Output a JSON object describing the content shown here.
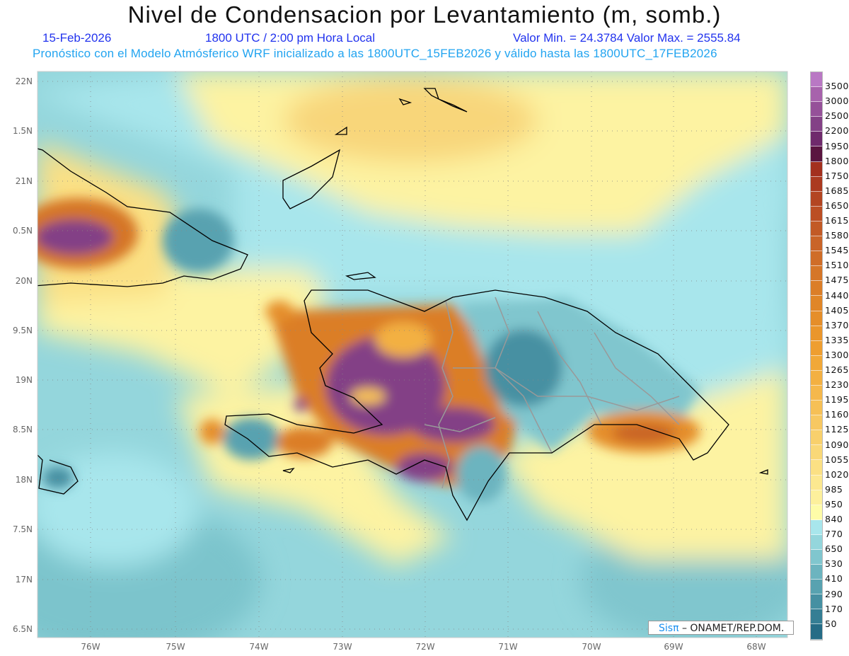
{
  "header": {
    "title": "Nivel de Condensacion por Levantamiento (m, somb.)",
    "date": "15-Feb-2026",
    "time": "1800 UTC / 2:00 pm Hora Local",
    "minmax": "Valor Min. = 24.3784  Valor Max. = 2555.84",
    "forecast": "Pronóstico con el Modelo Atmósferico WRF inicializado a las 1800UTC_15FEB2026 y válido hasta las  1800UTC_17FEB2026"
  },
  "axes": {
    "lat_labels": [
      "22N",
      "1.5N",
      "21N",
      "0.5N",
      "20N",
      "9.5N",
      "19N",
      "8.5N",
      "18N",
      "7.5N",
      "17N",
      "6.5N"
    ],
    "lon_labels": [
      "76W",
      "75W",
      "74W",
      "73W",
      "72W",
      "71W",
      "70W",
      "69W",
      "68W"
    ]
  },
  "colorbar": {
    "labels": [
      "3500",
      "3000",
      "2500",
      "2200",
      "1950",
      "1800",
      "1750",
      "1685",
      "1650",
      "1615",
      "1580",
      "1545",
      "1510",
      "1475",
      "1440",
      "1405",
      "1370",
      "1335",
      "1300",
      "1265",
      "1230",
      "1195",
      "1160",
      "1125",
      "1090",
      "1055",
      "1020",
      "985",
      "950",
      "840",
      "770",
      "650",
      "530",
      "410",
      "290",
      "170",
      "50"
    ],
    "colors": [
      "#b978c4",
      "#a762ac",
      "#955199",
      "#834186",
      "#6f2a6c",
      "#5a1540",
      "#a3301e",
      "#ab3a20",
      "#b34522",
      "#bb4e24",
      "#c25a26",
      "#c96428",
      "#cf6d28",
      "#d57628",
      "#db7e28",
      "#e08628",
      "#e58e2a",
      "#ea962c",
      "#ee9e30",
      "#f1a838",
      "#f3b042",
      "#f5b84c",
      "#f6c056",
      "#f7c862",
      "#f8d06c",
      "#f9d878",
      "#fbe084",
      "#fce890",
      "#fdf09c",
      "#fefca8",
      "#a8e6ec",
      "#94d6dc",
      "#80c6ce",
      "#6cb4bf",
      "#58a2b0",
      "#4690a2",
      "#357e94",
      "#256c86"
    ]
  },
  "credit": {
    "brand": "Sisπ",
    "text": " –  ONAMET/REP.DOM."
  }
}
